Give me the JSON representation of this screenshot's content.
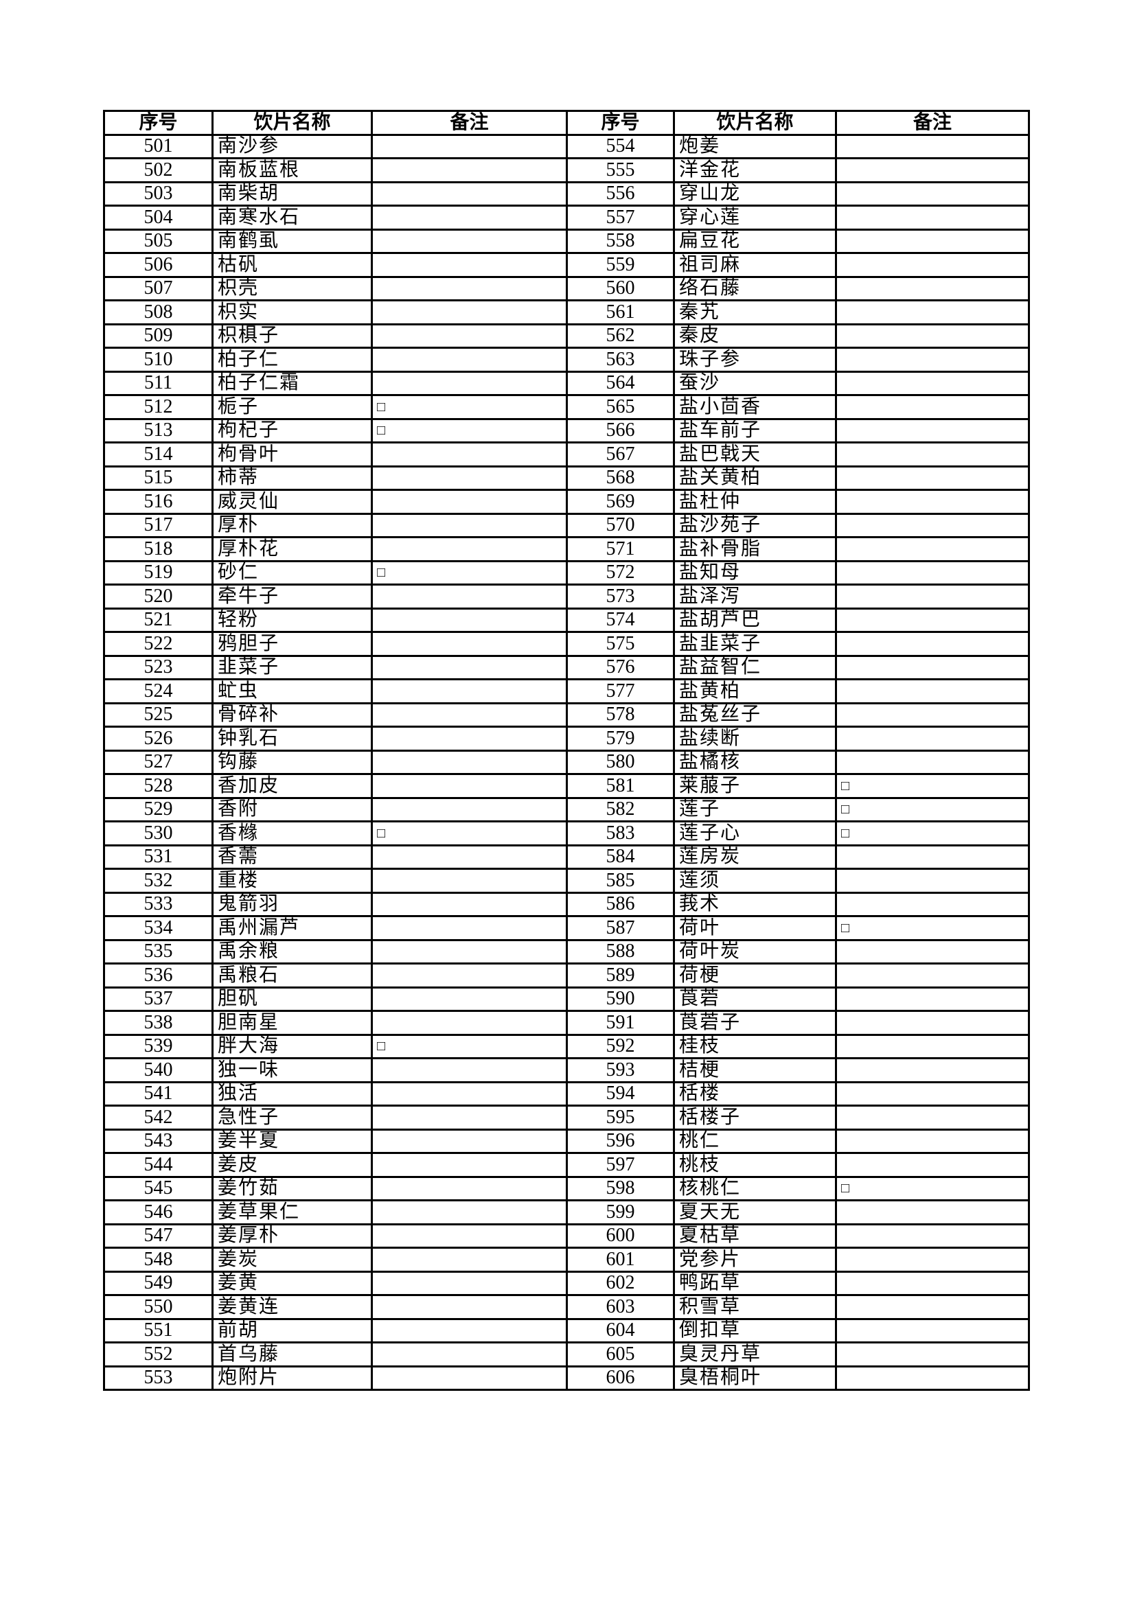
{
  "headers": [
    "序号",
    "饮片名称",
    "备注",
    "序号",
    "饮片名称",
    "备注"
  ],
  "left": [
    [
      "501",
      "南沙参",
      ""
    ],
    [
      "502",
      "南板蓝根",
      ""
    ],
    [
      "503",
      "南柴胡",
      ""
    ],
    [
      "504",
      "南寒水石",
      ""
    ],
    [
      "505",
      "南鹤虱",
      ""
    ],
    [
      "506",
      "枯矾",
      ""
    ],
    [
      "507",
      "枳壳",
      ""
    ],
    [
      "508",
      "枳实",
      ""
    ],
    [
      "509",
      "枳椇子",
      ""
    ],
    [
      "510",
      "柏子仁",
      ""
    ],
    [
      "511",
      "柏子仁霜",
      ""
    ],
    [
      "512",
      "栀子",
      "□"
    ],
    [
      "513",
      "枸杞子",
      "□"
    ],
    [
      "514",
      "枸骨叶",
      ""
    ],
    [
      "515",
      "柿蒂",
      ""
    ],
    [
      "516",
      "威灵仙",
      ""
    ],
    [
      "517",
      "厚朴",
      ""
    ],
    [
      "518",
      "厚朴花",
      ""
    ],
    [
      "519",
      "砂仁",
      "□"
    ],
    [
      "520",
      "牵牛子",
      ""
    ],
    [
      "521",
      "轻粉",
      ""
    ],
    [
      "522",
      "鸦胆子",
      ""
    ],
    [
      "523",
      "韭菜子",
      ""
    ],
    [
      "524",
      "虻虫",
      ""
    ],
    [
      "525",
      "骨碎补",
      ""
    ],
    [
      "526",
      "钟乳石",
      ""
    ],
    [
      "527",
      "钩藤",
      ""
    ],
    [
      "528",
      "香加皮",
      ""
    ],
    [
      "529",
      "香附",
      ""
    ],
    [
      "530",
      "香橼",
      "□"
    ],
    [
      "531",
      "香薷",
      ""
    ],
    [
      "532",
      "重楼",
      ""
    ],
    [
      "533",
      "鬼箭羽",
      ""
    ],
    [
      "534",
      "禹州漏芦",
      ""
    ],
    [
      "535",
      "禹余粮",
      ""
    ],
    [
      "536",
      "禹粮石",
      ""
    ],
    [
      "537",
      "胆矾",
      ""
    ],
    [
      "538",
      "胆南星",
      ""
    ],
    [
      "539",
      "胖大海",
      "□"
    ],
    [
      "540",
      "独一味",
      ""
    ],
    [
      "541",
      "独活",
      ""
    ],
    [
      "542",
      "急性子",
      ""
    ],
    [
      "543",
      "姜半夏",
      ""
    ],
    [
      "544",
      "姜皮",
      ""
    ],
    [
      "545",
      "姜竹茹",
      ""
    ],
    [
      "546",
      "姜草果仁",
      ""
    ],
    [
      "547",
      "姜厚朴",
      ""
    ],
    [
      "548",
      "姜炭",
      ""
    ],
    [
      "549",
      "姜黄",
      ""
    ],
    [
      "550",
      "姜黄连",
      ""
    ],
    [
      "551",
      "前胡",
      ""
    ],
    [
      "552",
      "首乌藤",
      ""
    ],
    [
      "553",
      "炮附片",
      ""
    ]
  ],
  "right": [
    [
      "554",
      "炮姜",
      ""
    ],
    [
      "555",
      "洋金花",
      ""
    ],
    [
      "556",
      "穿山龙",
      ""
    ],
    [
      "557",
      "穿心莲",
      ""
    ],
    [
      "558",
      "扁豆花",
      ""
    ],
    [
      "559",
      "祖司麻",
      ""
    ],
    [
      "560",
      "络石藤",
      ""
    ],
    [
      "561",
      "秦艽",
      ""
    ],
    [
      "562",
      "秦皮",
      ""
    ],
    [
      "563",
      "珠子参",
      ""
    ],
    [
      "564",
      "蚕沙",
      ""
    ],
    [
      "565",
      "盐小茴香",
      ""
    ],
    [
      "566",
      "盐车前子",
      ""
    ],
    [
      "567",
      "盐巴戟天",
      ""
    ],
    [
      "568",
      "盐关黄柏",
      ""
    ],
    [
      "569",
      "盐杜仲",
      ""
    ],
    [
      "570",
      "盐沙苑子",
      ""
    ],
    [
      "571",
      "盐补骨脂",
      ""
    ],
    [
      "572",
      "盐知母",
      ""
    ],
    [
      "573",
      "盐泽泻",
      ""
    ],
    [
      "574",
      "盐胡芦巴",
      ""
    ],
    [
      "575",
      "盐韭菜子",
      ""
    ],
    [
      "576",
      "盐益智仁",
      ""
    ],
    [
      "577",
      "盐黄柏",
      ""
    ],
    [
      "578",
      "盐菟丝子",
      ""
    ],
    [
      "579",
      "盐续断",
      ""
    ],
    [
      "580",
      "盐橘核",
      ""
    ],
    [
      "581",
      "莱菔子",
      "□"
    ],
    [
      "582",
      "莲子",
      "□"
    ],
    [
      "583",
      "莲子心",
      "□"
    ],
    [
      "584",
      "莲房炭",
      ""
    ],
    [
      "585",
      "莲须",
      ""
    ],
    [
      "586",
      "莪术",
      ""
    ],
    [
      "587",
      "荷叶",
      "□"
    ],
    [
      "588",
      "荷叶炭",
      ""
    ],
    [
      "589",
      "荷梗",
      ""
    ],
    [
      "590",
      "莨菪",
      ""
    ],
    [
      "591",
      "莨菪子",
      ""
    ],
    [
      "592",
      "桂枝",
      ""
    ],
    [
      "593",
      "桔梗",
      ""
    ],
    [
      "594",
      "栝楼",
      ""
    ],
    [
      "595",
      "栝楼子",
      ""
    ],
    [
      "596",
      "桃仁",
      ""
    ],
    [
      "597",
      "桃枝",
      ""
    ],
    [
      "598",
      "核桃仁",
      "□"
    ],
    [
      "599",
      "夏天无",
      ""
    ],
    [
      "600",
      "夏枯草",
      ""
    ],
    [
      "601",
      "党参片",
      ""
    ],
    [
      "602",
      "鸭跖草",
      ""
    ],
    [
      "603",
      "积雪草",
      ""
    ],
    [
      "604",
      "倒扣草",
      ""
    ],
    [
      "605",
      "臭灵丹草",
      ""
    ],
    [
      "606",
      "臭梧桐叶",
      ""
    ]
  ]
}
